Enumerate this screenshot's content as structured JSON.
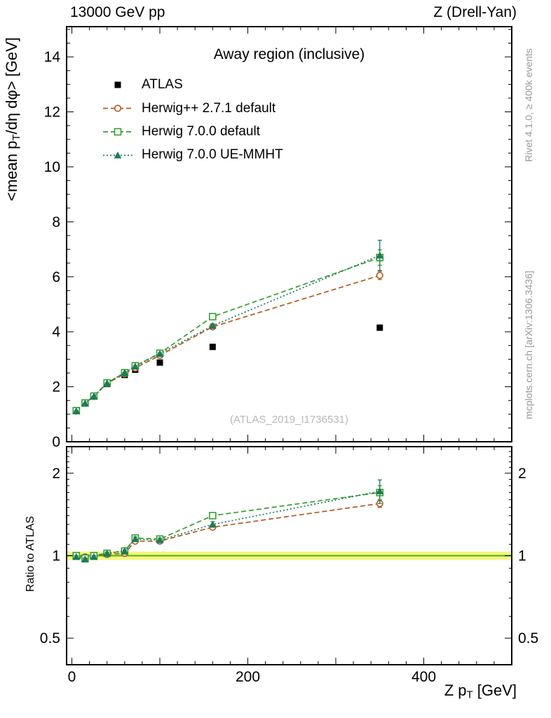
{
  "header": {
    "left": "13000 GeV pp",
    "right": "Z (Drell-Yan)"
  },
  "side_notes": {
    "top": "Rivet 4.1.0, ≥ 400k events",
    "bottom": "mcplots.cern.ch [arXiv:1306.3436]"
  },
  "watermark": "(ATLAS_2019_I1736531)",
  "chart_data": {
    "type": "line",
    "title": "Away region (inclusive)",
    "xlabel": {
      "pre": "Z p",
      "sub": "T",
      "post": " [GeV]"
    },
    "ylabel": {
      "pre": "<mean p",
      "sub": "T",
      "post": "/dη dφ> [GeV]"
    },
    "ratio_label": "Ratio to ATLAS",
    "legend_position": "top-left",
    "grid": false,
    "xlim": [
      -6,
      500
    ],
    "ylim_main": [
      0,
      15.1
    ],
    "ylim_ratio": [
      0.4,
      2.5
    ],
    "ratio_scale": "log",
    "x_ticks": [
      0,
      200,
      400
    ],
    "y_ticks_main": [
      0,
      2,
      4,
      6,
      8,
      10,
      12,
      14
    ],
    "y_ticks_ratio": [
      0.5,
      1,
      2
    ],
    "x": [
      5,
      15,
      25,
      40,
      60,
      72,
      100,
      160,
      350
    ],
    "series": [
      {
        "name": "ATLAS",
        "color": "#000000",
        "marker": "square-filled",
        "line": false,
        "values": [
          1.12,
          1.41,
          1.66,
          2.1,
          2.43,
          2.62,
          2.88,
          3.45,
          4.15
        ],
        "err": [
          0.02,
          0.02,
          0.02,
          0.02,
          0.02,
          0.03,
          0.03,
          0.04,
          0.06
        ]
      },
      {
        "name": "Herwig++ 2.7.1 default",
        "color": "#b4591e",
        "marker": "circle-open",
        "line": true,
        "dash": "7,4",
        "values": [
          1.12,
          1.4,
          1.65,
          2.12,
          2.47,
          2.68,
          3.14,
          4.18,
          6.05
        ],
        "err": [
          0.01,
          0.01,
          0.01,
          0.01,
          0.02,
          0.02,
          0.03,
          0.05,
          0.15
        ],
        "ratio": [
          1.0,
          0.99,
          1.0,
          1.01,
          1.02,
          1.13,
          1.13,
          1.27,
          1.55
        ],
        "ratio_err": [
          0.01,
          0.01,
          0.01,
          0.01,
          0.01,
          0.01,
          0.02,
          0.02,
          0.05
        ]
      },
      {
        "name": "Herwig 7.0.0 default",
        "color": "#36a02e",
        "marker": "square-open",
        "line": true,
        "dash": "7,4",
        "values": [
          1.13,
          1.41,
          1.66,
          2.14,
          2.51,
          2.76,
          3.22,
          4.55,
          6.7
        ],
        "err": [
          0.01,
          0.01,
          0.01,
          0.01,
          0.02,
          0.02,
          0.03,
          0.08,
          0.28
        ],
        "ratio": [
          1.0,
          0.98,
          1.0,
          1.02,
          1.04,
          1.16,
          1.15,
          1.4,
          1.7
        ],
        "ratio_err": [
          0.01,
          0.01,
          0.01,
          0.01,
          0.01,
          0.02,
          0.02,
          0.03,
          0.1
        ]
      },
      {
        "name": "Herwig 7.0.0 UE-MMHT",
        "color": "#1e7a5a",
        "marker": "triangle-filled",
        "line": true,
        "dash": "2,3",
        "values": [
          1.12,
          1.4,
          1.65,
          2.13,
          2.51,
          2.74,
          3.2,
          4.22,
          6.78
        ],
        "err": [
          0.01,
          0.01,
          0.01,
          0.01,
          0.02,
          0.02,
          0.03,
          0.07,
          0.55
        ],
        "ratio": [
          0.99,
          0.97,
          0.99,
          1.02,
          1.04,
          1.15,
          1.14,
          1.3,
          1.72
        ],
        "ratio_err": [
          0.01,
          0.01,
          0.01,
          0.01,
          0.01,
          0.02,
          0.02,
          0.03,
          0.17
        ]
      }
    ],
    "band": {
      "center": 1.0,
      "halfwidth": 0.035,
      "fill": "#f6f67e",
      "line_color": "#4bb418"
    }
  }
}
